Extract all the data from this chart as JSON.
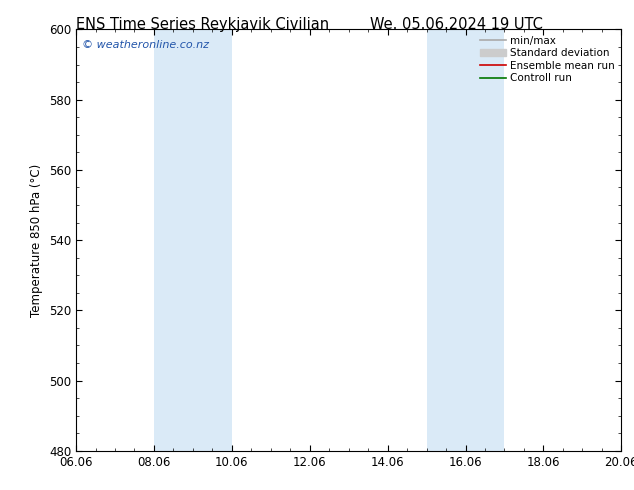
{
  "title1": "ENS Time Series Reykjavik Civilian",
  "title2": "We. 05.06.2024 19 UTC",
  "ylabel": "Temperature 850 hPa (°C)",
  "xlim_start": 0.0,
  "xlim_end": 14.0,
  "ylim": [
    480,
    600
  ],
  "yticks": [
    480,
    500,
    520,
    540,
    560,
    580,
    600
  ],
  "xtick_labels": [
    "06.06",
    "08.06",
    "10.06",
    "12.06",
    "14.06",
    "16.06",
    "18.06",
    "20.06"
  ],
  "xtick_positions": [
    0,
    2,
    4,
    6,
    8,
    10,
    12,
    14
  ],
  "shaded_regions": [
    {
      "xmin": 2.0,
      "xmax": 4.0,
      "color": "#daeaf7"
    },
    {
      "xmin": 9.0,
      "xmax": 11.0,
      "color": "#daeaf7"
    }
  ],
  "watermark": "© weatheronline.co.nz",
  "watermark_color": "#2255aa",
  "legend_items": [
    {
      "label": "min/max",
      "color": "#aaaaaa",
      "lw": 1.2,
      "type": "line"
    },
    {
      "label": "Standard deviation",
      "color": "#cccccc",
      "lw": 8,
      "type": "patch"
    },
    {
      "label": "Ensemble mean run",
      "color": "#cc0000",
      "lw": 1.2,
      "type": "line"
    },
    {
      "label": "Controll run",
      "color": "#007700",
      "lw": 1.2,
      "type": "line"
    }
  ],
  "background_color": "#ffffff",
  "title_fontsize": 10.5,
  "axis_fontsize": 8.5,
  "tick_fontsize": 8.5,
  "watermark_fontsize": 8
}
